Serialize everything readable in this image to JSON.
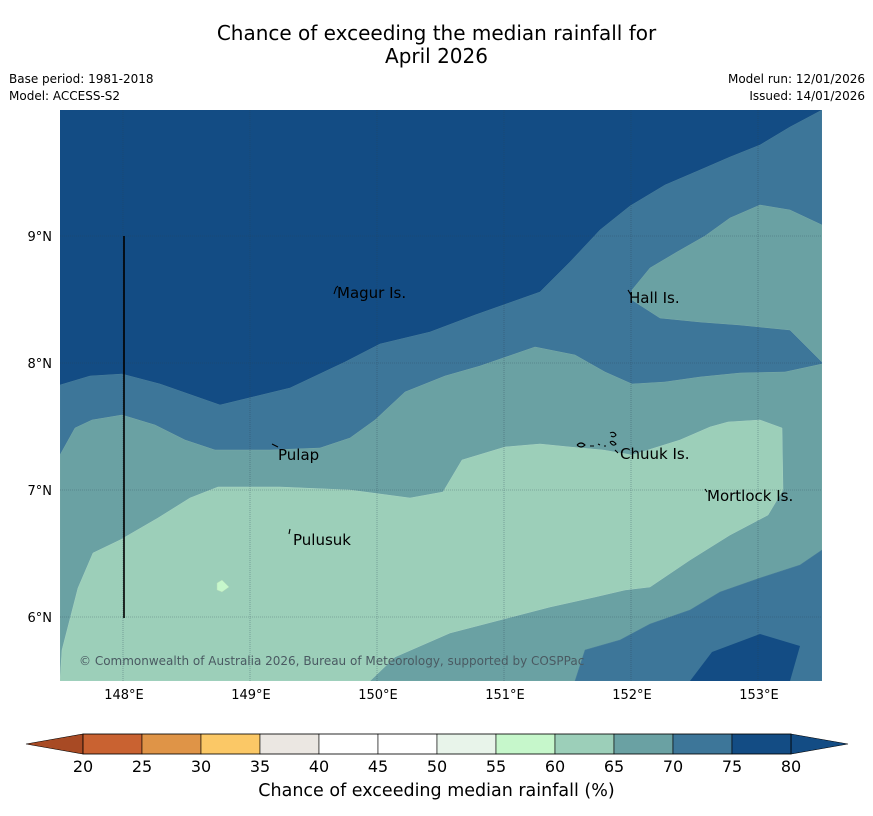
{
  "title": {
    "line1": "Chance of exceeding the median rainfall for",
    "line2": "April 2026"
  },
  "meta": {
    "base_period": "Base period: 1981-2018",
    "model": "Model: ACCESS-S2",
    "model_run": "Model run: 12/01/2026",
    "issued": "Issued: 14/01/2026"
  },
  "map": {
    "lon_ticks": [
      "148°E",
      "149°E",
      "150°E",
      "151°E",
      "152°E",
      "153°E"
    ],
    "lat_ticks": [
      "9°N",
      "8°N",
      "7°N",
      "6°N"
    ],
    "places": [
      "Magur Is.",
      "Hall Is.",
      "Pulap",
      "Chuuk Is.",
      "Mortlock Is.",
      "Pulusuk"
    ],
    "copyright": "© Commonwealth of Australia 2026, Bureau of Meteorology, supported by COSPPac"
  },
  "colorbar": {
    "ticks": [
      "20",
      "25",
      "30",
      "35",
      "40",
      "45",
      "50",
      "55",
      "60",
      "65",
      "70",
      "75",
      "80"
    ],
    "colors": [
      "#a84a24",
      "#c96231",
      "#df9447",
      "#fbc866",
      "#ebe7e2",
      "#ffffff",
      "#ffffff",
      "#e8f4ea",
      "#c6f7cb",
      "#9ccfb9",
      "#6aa1a3",
      "#3d7699",
      "#134c84"
    ],
    "title": "Chance of exceeding median rainfall (%)"
  }
}
